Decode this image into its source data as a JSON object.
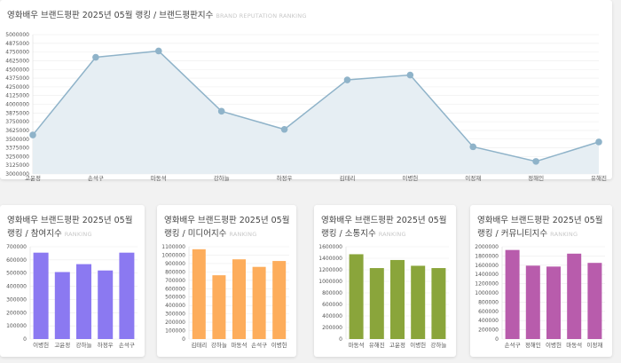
{
  "main": {
    "title": "영화배우 브랜드평판 2025년 05월 랭킹 / 브랜드평판지수",
    "subtitle": "BRAND REPUTATION RANKING"
  },
  "cards": [
    {
      "title": "영화배우 브랜드평판 2025년 05월 랭킹 / 참여지수",
      "subtitle": "RANKING"
    },
    {
      "title": "영화배우 브랜드평판 2025년 05월 랭킹 / 미디어지수",
      "subtitle": "RANKING"
    },
    {
      "title": "영화배우 브랜드평판 2025년 05월 랭킹 / 소통지수",
      "subtitle": "RANKING"
    },
    {
      "title": "영화배우 브랜드평판 2025년 05월 랭킹 / 커뮤니티지수",
      "subtitle": "RANKING"
    }
  ],
  "chart_data": [
    {
      "type": "area",
      "title": "영화배우 브랜드평판 2025년 05월 랭킹 / 브랜드평판지수",
      "categories": [
        "고윤정",
        "손석구",
        "마동석",
        "강하늘",
        "하정우",
        "김태리",
        "이병헌",
        "이정재",
        "정해인",
        "유해진"
      ],
      "values": [
        3560000,
        4675000,
        4765000,
        3900000,
        3640000,
        4350000,
        4420000,
        3390000,
        3180000,
        3460000
      ],
      "ylim": [
        3000000,
        5000000
      ],
      "yticks": [
        "5000000",
        "4875000",
        "4750000",
        "4625000",
        "4500000",
        "4375000",
        "4250000",
        "4125000",
        "4000000",
        "3875000",
        "3750000",
        "3625000",
        "3500000",
        "3375000",
        "3250000",
        "3125000",
        "3000000"
      ],
      "color": "#8fb3c9",
      "fill": "#e6eef3"
    },
    {
      "type": "bar",
      "title": "참여지수",
      "categories": [
        "이병헌",
        "고윤정",
        "강하늘",
        "하정우",
        "손석구"
      ],
      "values": [
        655000,
        508000,
        568000,
        520000,
        655000
      ],
      "ylim": [
        0,
        700000
      ],
      "yticks": [
        "700000",
        "600000",
        "500000",
        "400000",
        "300000",
        "200000",
        "100000",
        "0"
      ],
      "color": "#8b79f1"
    },
    {
      "type": "bar",
      "title": "미디어지수",
      "categories": [
        "김태리",
        "강하늘",
        "마동석",
        "손석구",
        "이병헌"
      ],
      "values": [
        1070000,
        760000,
        950000,
        860000,
        930000
      ],
      "ylim": [
        0,
        1100000
      ],
      "yticks": [
        "1100000",
        "1000000",
        "900000",
        "800000",
        "700000",
        "600000",
        "500000",
        "400000",
        "300000",
        "200000",
        "100000",
        "0"
      ],
      "color": "#fdad5c"
    },
    {
      "type": "bar",
      "title": "소통지수",
      "categories": [
        "마동석",
        "유해진",
        "고윤정",
        "이병헌",
        "강하늘"
      ],
      "values": [
        1470000,
        1230000,
        1370000,
        1270000,
        1230000
      ],
      "ylim": [
        0,
        1600000
      ],
      "yticks": [
        "1600000",
        "1400000",
        "1200000",
        "1000000",
        "800000",
        "600000",
        "400000",
        "200000",
        "0"
      ],
      "color": "#8aa53b"
    },
    {
      "type": "bar",
      "title": "커뮤니티지수",
      "categories": [
        "손석구",
        "정해인",
        "이병헌",
        "마동석",
        "이정재"
      ],
      "values": [
        1930000,
        1590000,
        1570000,
        1850000,
        1650000
      ],
      "ylim": [
        0,
        2000000
      ],
      "yticks": [
        "2000000",
        "1800000",
        "1600000",
        "1400000",
        "1200000",
        "1000000",
        "800000",
        "600000",
        "400000",
        "200000",
        "0"
      ],
      "color": "#b85cac"
    }
  ]
}
